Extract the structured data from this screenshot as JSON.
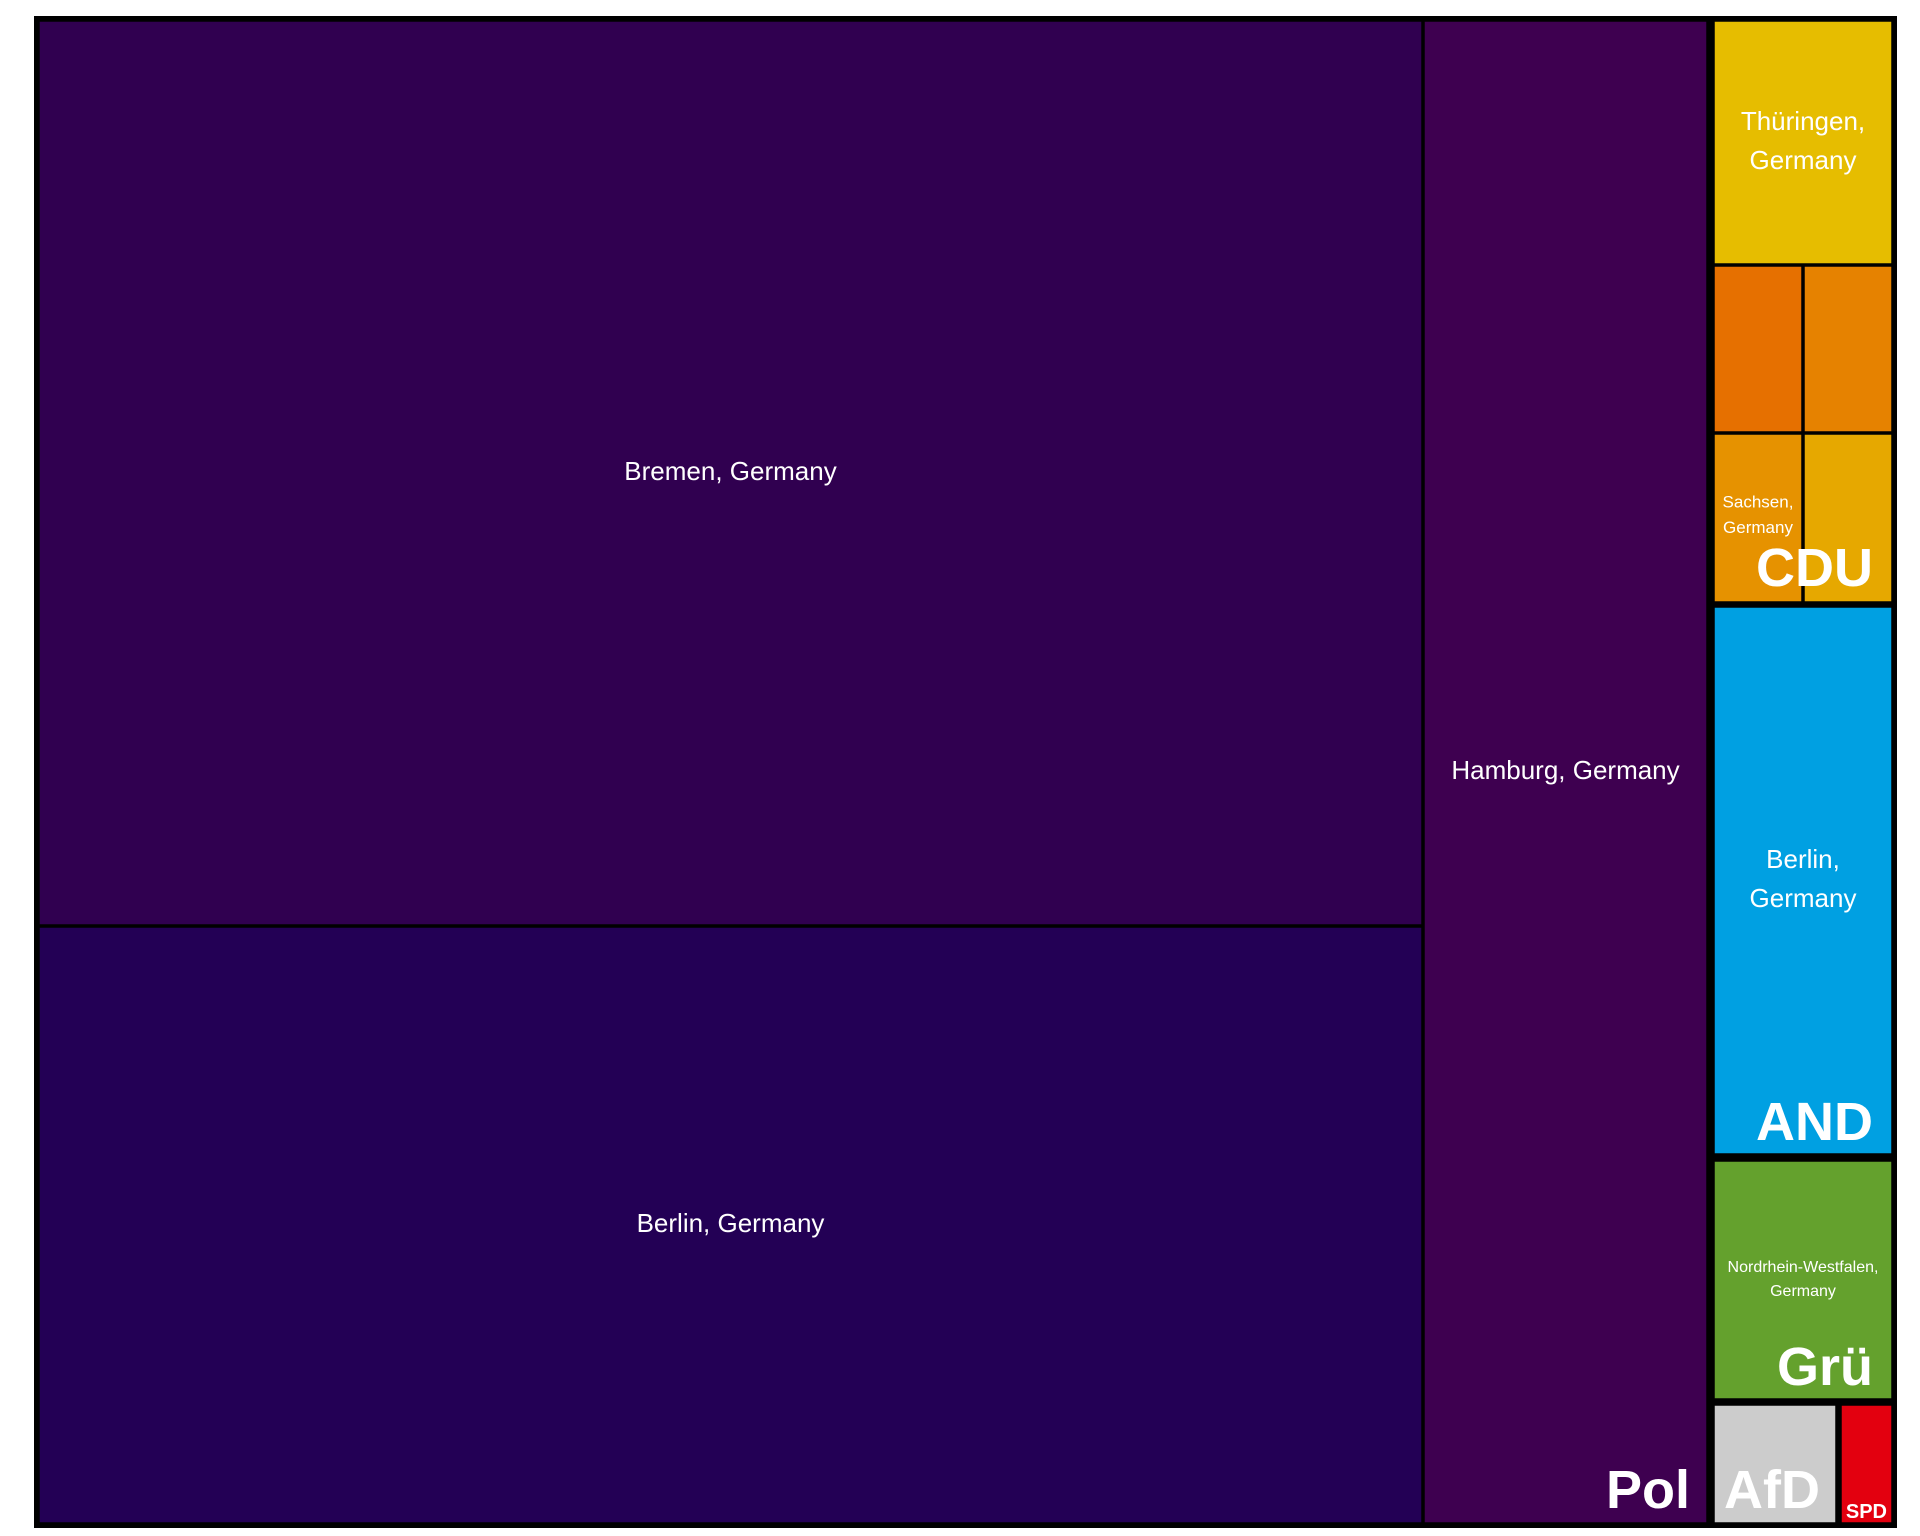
{
  "chart_data": {
    "type": "treemap",
    "title": "",
    "groups": [
      {
        "name": "Pol",
        "color": "#3a0550",
        "children": [
          {
            "label": "Bremen, Germany",
            "color": "#300050",
            "value": 26.15
          },
          {
            "label": "Berlin, Germany",
            "color": "#230055",
            "value": 17.32
          },
          {
            "label": "Hamburg, Germany",
            "color": "#3e0050",
            "value": 8.43
          }
        ]
      },
      {
        "name": "CDU",
        "color": "#e69a00",
        "children": [
          {
            "label": "Thüringen, Germany",
            "color": "#e6bd00",
            "value": 0.86
          },
          {
            "label": "",
            "color": "#e67000",
            "value": 0.29
          },
          {
            "label": "",
            "color": "#e68200",
            "value": 0.29
          },
          {
            "label": "Sachsen, Germany",
            "color": "#e69200",
            "value": 0.29
          },
          {
            "label": "",
            "color": "#e6a800",
            "value": 0.29
          }
        ]
      },
      {
        "name": "AND",
        "color": "#00a0e2",
        "children": [
          {
            "label": "Berlin, Germany",
            "color": "#00a0e2",
            "value": 1.95
          }
        ]
      },
      {
        "name": "Grü",
        "color": "#64a12d",
        "children": [
          {
            "label": "Nordrhein-Westfalen, Germany",
            "color": "#64a12d",
            "value": 0.86
          }
        ]
      },
      {
        "name": "AfD",
        "color": "#cccccc",
        "children": [
          {
            "label": "",
            "color": "#cccccc",
            "value": 0.43
          }
        ]
      },
      {
        "name": "SPD",
        "color": "#e3000f",
        "children": [
          {
            "label": "",
            "color": "#e3000f",
            "value": 0.18
          }
        ]
      }
    ]
  }
}
